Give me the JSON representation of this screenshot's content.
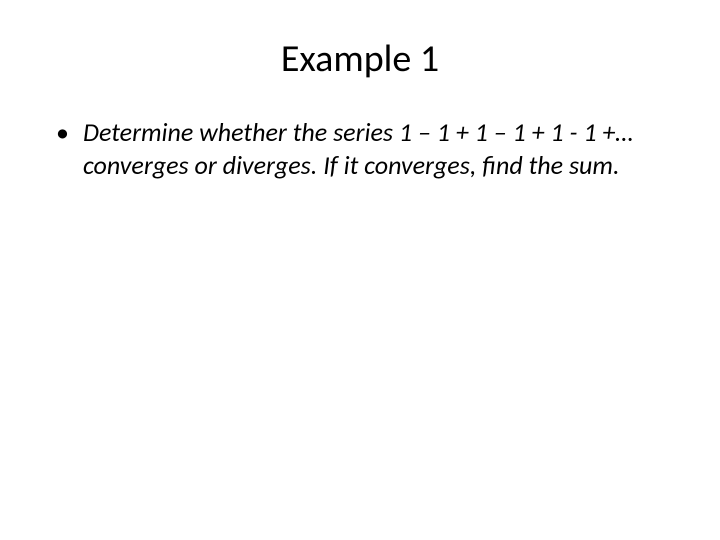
{
  "title": "Example 1",
  "bullet": {
    "marker": "•",
    "text": "Determine whether the series 1 – 1 + 1 – 1 + 1 - 1 +… converges or diverges.  If it converges, find the sum."
  },
  "colors": {
    "background": "#ffffff",
    "text": "#000000"
  },
  "typography": {
    "title_fontsize": 38,
    "body_fontsize": 26,
    "body_style": "italic",
    "font_family": "Calibri"
  }
}
